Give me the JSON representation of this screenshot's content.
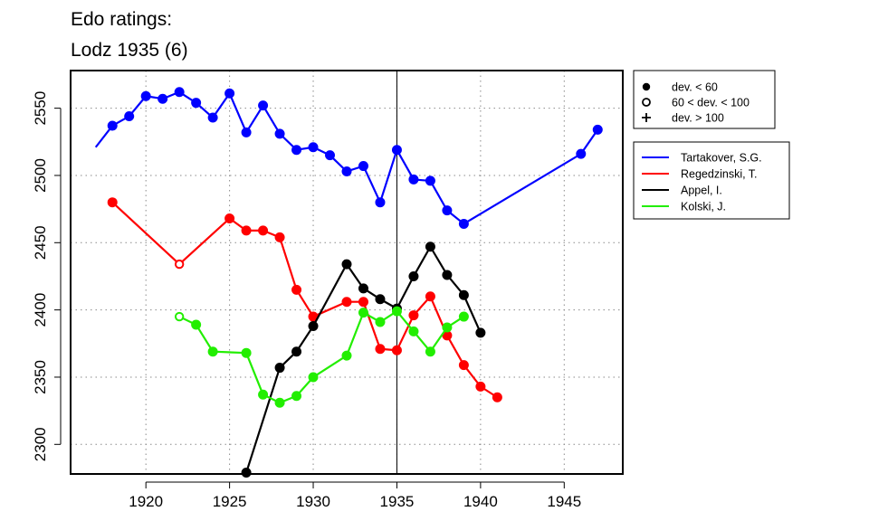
{
  "title": [
    "Edo ratings:",
    "Lodz 1935 (6)"
  ],
  "colors": {
    "Tartakover, S.G.": "#0000ff",
    "Regedzinski, T.": "#ff0000",
    "Appel, I.": "#000000",
    "Kolski, J.": "#22ee00"
  },
  "chart_data": {
    "type": "line",
    "title": "Edo ratings: Lodz 1935 (6)",
    "xlim": [
      1915.5,
      1948.5
    ],
    "ylim": [
      2278,
      2578
    ],
    "x_ticks": [
      1920,
      1925,
      1930,
      1935,
      1940,
      1945
    ],
    "y_ticks": [
      2300,
      2350,
      2400,
      2450,
      2500,
      2550
    ],
    "grid": "dotted at ticks",
    "vertical_marker": 1935,
    "marker_legend": [
      {
        "symbol": "filled-circle",
        "label": "dev. < 60"
      },
      {
        "symbol": "open-circle",
        "label": "60 < dev. < 100"
      },
      {
        "symbol": "plus",
        "label": "dev. > 100"
      }
    ],
    "series": [
      {
        "name": "Tartakover, S.G.",
        "points": [
          {
            "x": 1917,
            "y": 2521,
            "m": "plus"
          },
          {
            "x": 1918,
            "y": 2537,
            "m": "filled"
          },
          {
            "x": 1919,
            "y": 2544,
            "m": "filled"
          },
          {
            "x": 1920,
            "y": 2559,
            "m": "filled"
          },
          {
            "x": 1921,
            "y": 2557,
            "m": "filled"
          },
          {
            "x": 1922,
            "y": 2562,
            "m": "filled"
          },
          {
            "x": 1923,
            "y": 2554,
            "m": "filled"
          },
          {
            "x": 1924,
            "y": 2543,
            "m": "filled"
          },
          {
            "x": 1925,
            "y": 2561,
            "m": "filled"
          },
          {
            "x": 1926,
            "y": 2532,
            "m": "filled"
          },
          {
            "x": 1927,
            "y": 2552,
            "m": "filled"
          },
          {
            "x": 1928,
            "y": 2531,
            "m": "filled"
          },
          {
            "x": 1929,
            "y": 2519,
            "m": "filled"
          },
          {
            "x": 1930,
            "y": 2521,
            "m": "filled"
          },
          {
            "x": 1931,
            "y": 2515,
            "m": "filled"
          },
          {
            "x": 1932,
            "y": 2503,
            "m": "filled"
          },
          {
            "x": 1933,
            "y": 2507,
            "m": "filled"
          },
          {
            "x": 1934,
            "y": 2480,
            "m": "filled"
          },
          {
            "x": 1935,
            "y": 2519,
            "m": "filled"
          },
          {
            "x": 1936,
            "y": 2497,
            "m": "filled"
          },
          {
            "x": 1937,
            "y": 2496,
            "m": "filled"
          },
          {
            "x": 1938,
            "y": 2474,
            "m": "filled"
          },
          {
            "x": 1939,
            "y": 2464,
            "m": "filled"
          },
          {
            "x": 1946,
            "y": 2516,
            "m": "filled"
          },
          {
            "x": 1947,
            "y": 2534,
            "m": "filled"
          }
        ]
      },
      {
        "name": "Regedzinski, T.",
        "points": [
          {
            "x": 1918,
            "y": 2480,
            "m": "filled"
          },
          {
            "x": 1922,
            "y": 2434,
            "m": "open"
          },
          {
            "x": 1925,
            "y": 2468,
            "m": "filled"
          },
          {
            "x": 1926,
            "y": 2459,
            "m": "filled"
          },
          {
            "x": 1927,
            "y": 2459,
            "m": "filled"
          },
          {
            "x": 1928,
            "y": 2454,
            "m": "filled"
          },
          {
            "x": 1929,
            "y": 2415,
            "m": "filled"
          },
          {
            "x": 1930,
            "y": 2395,
            "m": "filled"
          },
          {
            "x": 1932,
            "y": 2406,
            "m": "filled"
          },
          {
            "x": 1933,
            "y": 2406,
            "m": "filled"
          },
          {
            "x": 1934,
            "y": 2371,
            "m": "filled"
          },
          {
            "x": 1935,
            "y": 2370,
            "m": "filled"
          },
          {
            "x": 1936,
            "y": 2396,
            "m": "filled"
          },
          {
            "x": 1937,
            "y": 2410,
            "m": "filled"
          },
          {
            "x": 1938,
            "y": 2381,
            "m": "filled"
          },
          {
            "x": 1939,
            "y": 2359,
            "m": "filled"
          },
          {
            "x": 1940,
            "y": 2343,
            "m": "filled"
          },
          {
            "x": 1941,
            "y": 2335,
            "m": "filled"
          }
        ]
      },
      {
        "name": "Appel, I.",
        "points": [
          {
            "x": 1926,
            "y": 2279,
            "m": "filled"
          },
          {
            "x": 1928,
            "y": 2357,
            "m": "filled"
          },
          {
            "x": 1929,
            "y": 2369,
            "m": "filled"
          },
          {
            "x": 1930,
            "y": 2388,
            "m": "filled"
          },
          {
            "x": 1932,
            "y": 2434,
            "m": "filled"
          },
          {
            "x": 1933,
            "y": 2416,
            "m": "filled"
          },
          {
            "x": 1934,
            "y": 2408,
            "m": "filled"
          },
          {
            "x": 1935,
            "y": 2401,
            "m": "filled"
          },
          {
            "x": 1936,
            "y": 2425,
            "m": "filled"
          },
          {
            "x": 1937,
            "y": 2447,
            "m": "filled"
          },
          {
            "x": 1938,
            "y": 2426,
            "m": "filled"
          },
          {
            "x": 1939,
            "y": 2411,
            "m": "filled"
          },
          {
            "x": 1940,
            "y": 2383,
            "m": "filled"
          }
        ]
      },
      {
        "name": "Kolski, J.",
        "points": [
          {
            "x": 1922,
            "y": 2395,
            "m": "open"
          },
          {
            "x": 1923,
            "y": 2389,
            "m": "filled"
          },
          {
            "x": 1924,
            "y": 2369,
            "m": "filled"
          },
          {
            "x": 1926,
            "y": 2368,
            "m": "filled"
          },
          {
            "x": 1927,
            "y": 2337,
            "m": "filled"
          },
          {
            "x": 1928,
            "y": 2331,
            "m": "filled"
          },
          {
            "x": 1929,
            "y": 2336,
            "m": "filled"
          },
          {
            "x": 1930,
            "y": 2350,
            "m": "filled"
          },
          {
            "x": 1932,
            "y": 2366,
            "m": "filled"
          },
          {
            "x": 1933,
            "y": 2398,
            "m": "filled"
          },
          {
            "x": 1934,
            "y": 2391,
            "m": "filled"
          },
          {
            "x": 1935,
            "y": 2399,
            "m": "filled"
          },
          {
            "x": 1936,
            "y": 2384,
            "m": "filled"
          },
          {
            "x": 1937,
            "y": 2369,
            "m": "filled"
          },
          {
            "x": 1938,
            "y": 2387,
            "m": "filled"
          },
          {
            "x": 1939,
            "y": 2395,
            "m": "filled"
          }
        ]
      }
    ]
  }
}
